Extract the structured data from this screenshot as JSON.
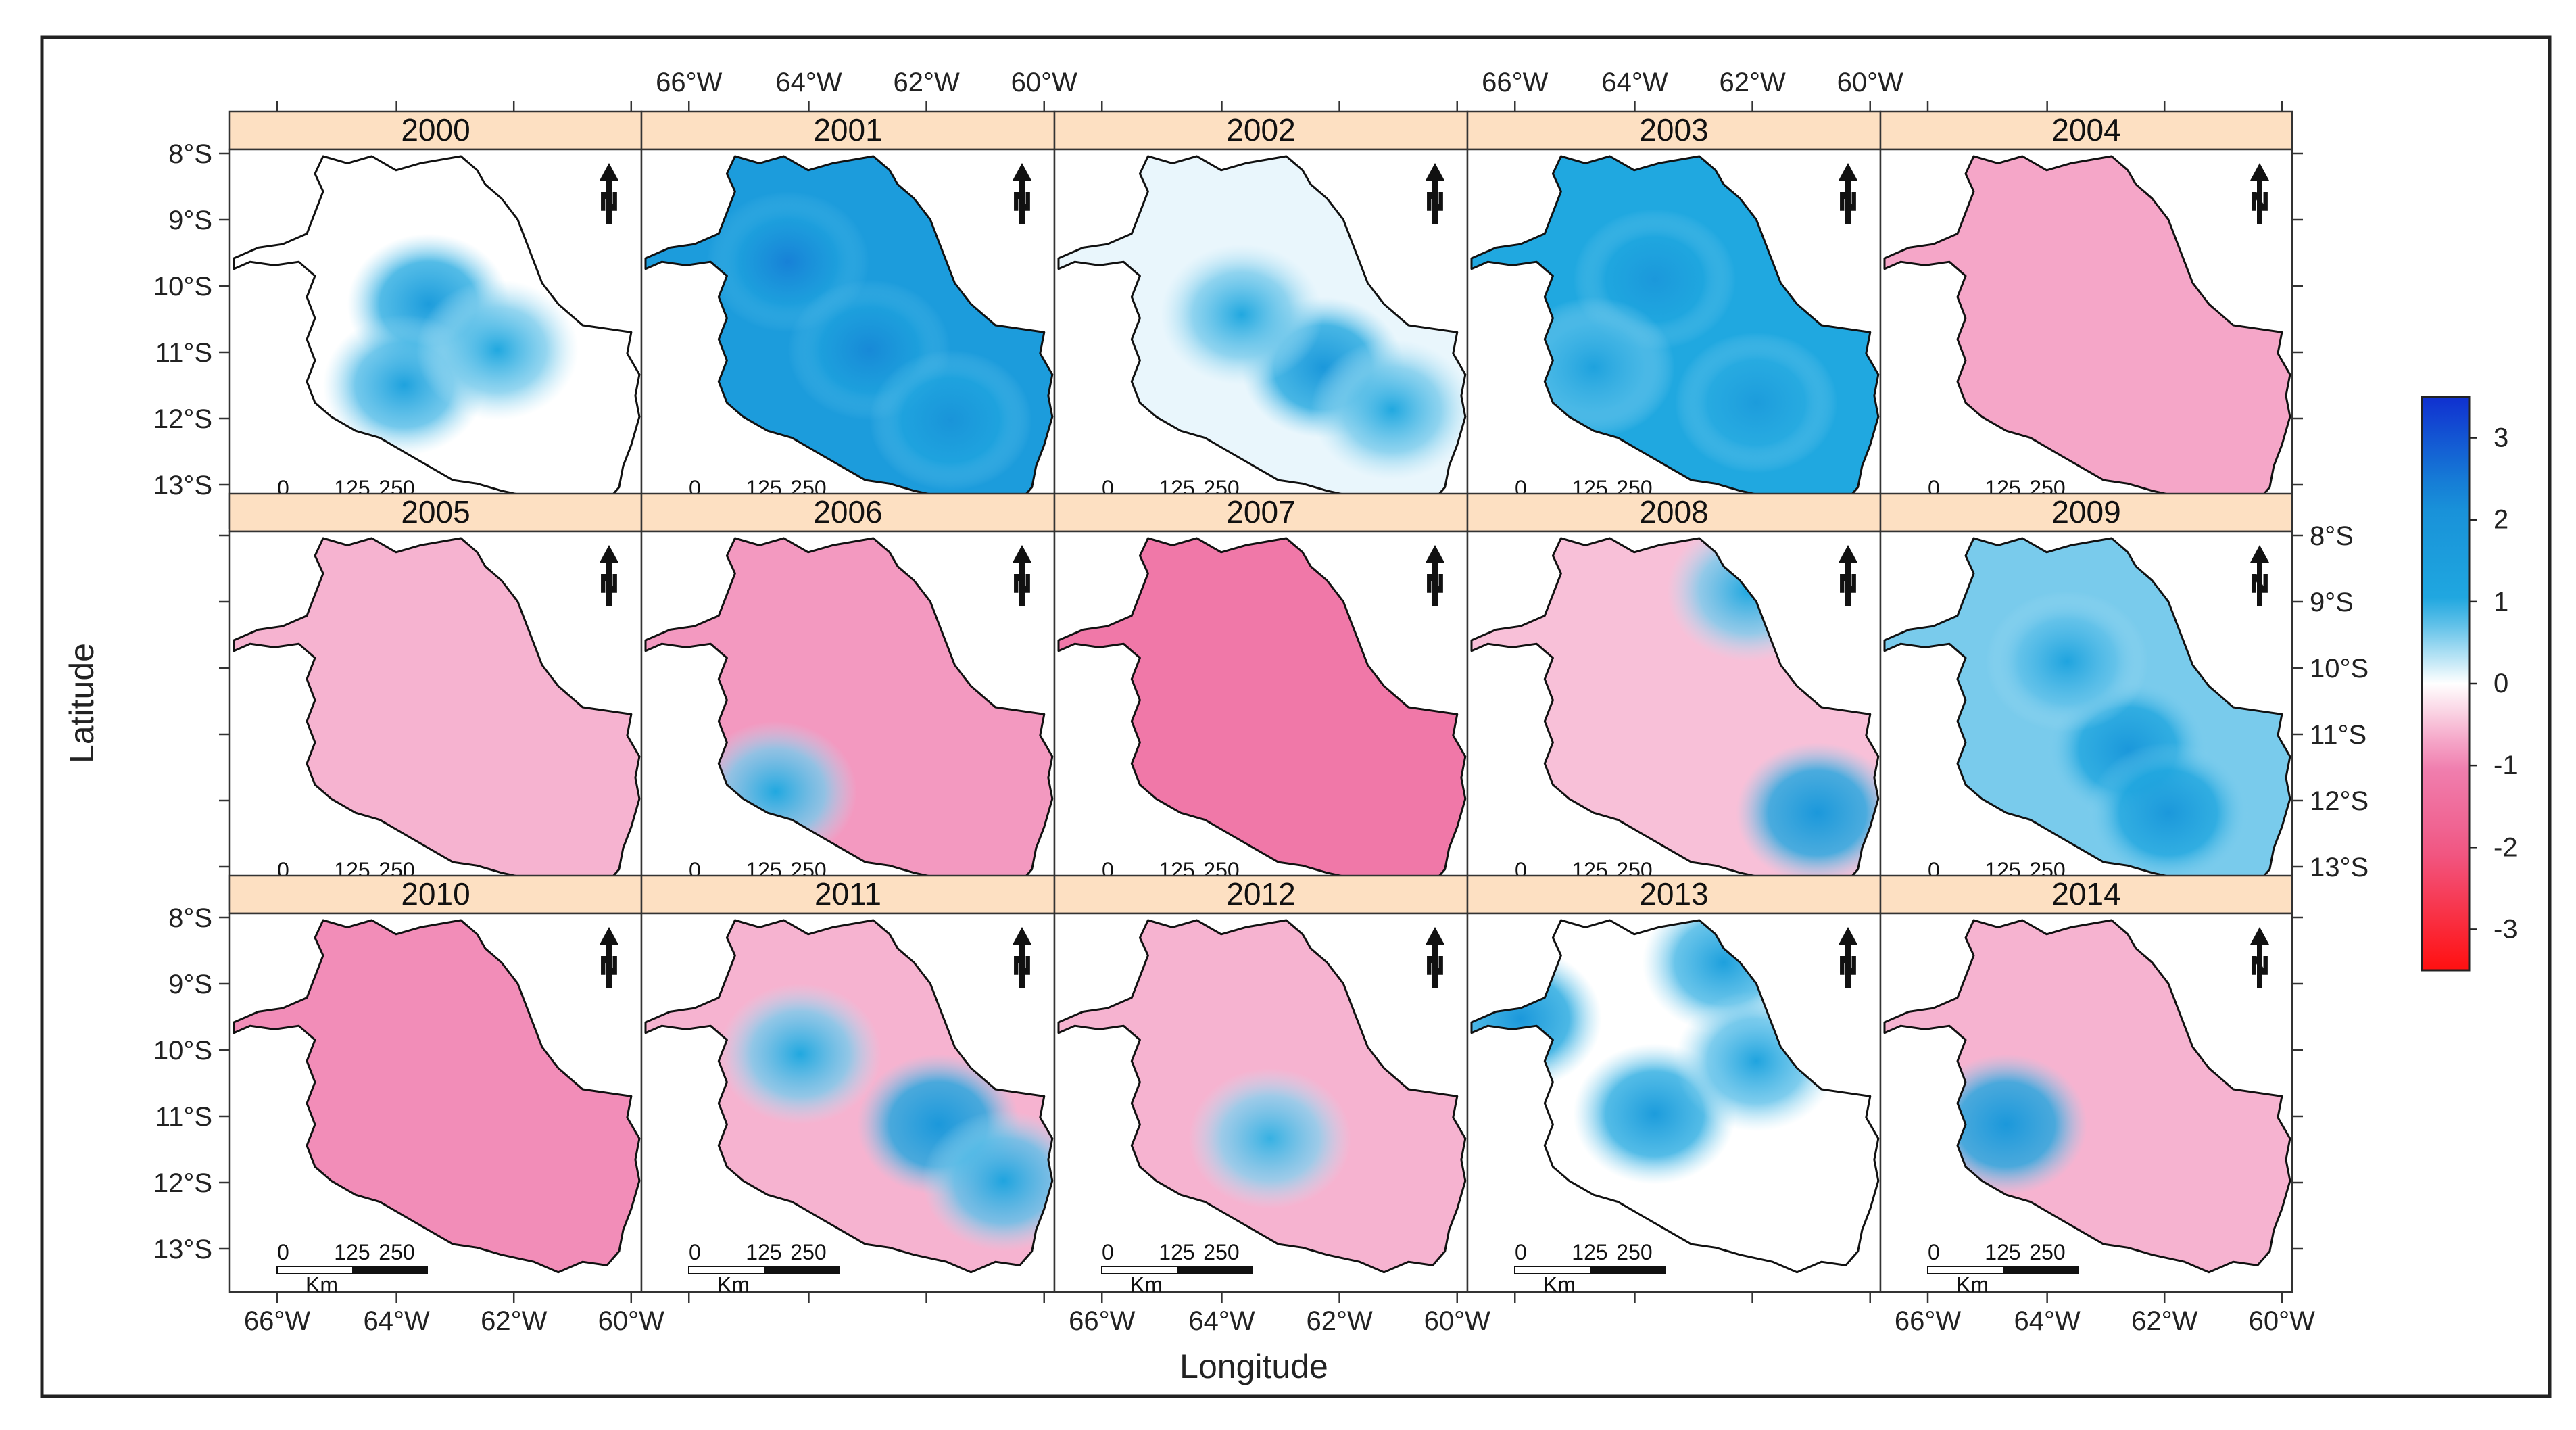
{
  "figure": {
    "type": "map_panel_grid",
    "xlabel": "Longitude",
    "ylabel": "Latitude",
    "x_tick_labels": [
      "66°W",
      "64°W",
      "62°W",
      "60°W"
    ],
    "y_tick_labels": [
      "8°S",
      "9°S",
      "10°S",
      "11°S",
      "12°S",
      "13°S"
    ],
    "scale_bar": {
      "labels": [
        "0",
        "125",
        "250"
      ],
      "unit": "Km"
    },
    "north_arrow": "N",
    "colorbar": {
      "ticks": [
        "3",
        "2",
        "1",
        "0",
        "-1",
        "-2",
        "-3"
      ],
      "range": [
        -3.5,
        3.5
      ],
      "colors": {
        "positive": "#1030d0",
        "mid_positive": "#20a8e0",
        "neutral": "#ffffff",
        "mid_negative": "#f080b0",
        "negative": "#ff1010"
      }
    }
  },
  "panels": [
    {
      "year": "2000",
      "anomaly": 0.0,
      "blue_patches": [
        [
          0.48,
          0.42,
          1.6
        ],
        [
          0.42,
          0.65,
          1.3
        ],
        [
          0.65,
          0.55,
          1.0
        ]
      ]
    },
    {
      "year": "2001",
      "anomaly": 1.6,
      "blue_patches": [
        [
          0.35,
          0.3,
          2.4
        ],
        [
          0.55,
          0.55,
          2.3
        ],
        [
          0.75,
          0.75,
          2.0
        ]
      ]
    },
    {
      "year": "2002",
      "anomaly": 0.1,
      "blue_patches": [
        [
          0.65,
          0.6,
          1.8
        ],
        [
          0.45,
          0.45,
          1.0
        ],
        [
          0.82,
          0.72,
          1.0
        ]
      ]
    },
    {
      "year": "2003",
      "anomaly": 1.0,
      "blue_patches": [
        [
          0.45,
          0.35,
          1.8
        ],
        [
          0.7,
          0.7,
          1.6
        ],
        [
          0.3,
          0.6,
          1.3
        ]
      ]
    },
    {
      "year": "2004",
      "anomaly": -0.7,
      "blue_patches": []
    },
    {
      "year": "2005",
      "anomaly": -0.6,
      "blue_patches": []
    },
    {
      "year": "2006",
      "anomaly": -0.8,
      "blue_patches": [
        [
          0.32,
          0.72,
          1.0
        ]
      ]
    },
    {
      "year": "2007",
      "anomaly": -1.2,
      "blue_patches": []
    },
    {
      "year": "2008",
      "anomaly": -0.5,
      "blue_patches": [
        [
          0.85,
          0.78,
          1.8
        ],
        [
          0.68,
          0.15,
          1.0
        ]
      ]
    },
    {
      "year": "2009",
      "anomaly": 0.6,
      "blue_patches": [
        [
          0.6,
          0.6,
          1.8
        ],
        [
          0.7,
          0.78,
          1.8
        ],
        [
          0.45,
          0.35,
          1.2
        ]
      ]
    },
    {
      "year": "2010",
      "anomaly": -0.9,
      "blue_patches": []
    },
    {
      "year": "2011",
      "anomaly": -0.6,
      "blue_patches": [
        [
          0.72,
          0.58,
          1.8
        ],
        [
          0.38,
          0.38,
          1.0
        ],
        [
          0.88,
          0.74,
          1.2
        ]
      ]
    },
    {
      "year": "2012",
      "anomaly": -0.6,
      "blue_patches": [
        [
          0.52,
          0.62,
          0.9
        ]
      ]
    },
    {
      "year": "2013",
      "anomaly": 0.0,
      "blue_patches": [
        [
          0.45,
          0.55,
          1.6
        ],
        [
          0.62,
          0.12,
          1.4
        ],
        [
          0.12,
          0.28,
          1.8
        ],
        [
          0.7,
          0.4,
          1.2
        ]
      ]
    },
    {
      "year": "2014",
      "anomaly": -0.6,
      "blue_patches": [
        [
          0.3,
          0.58,
          1.8
        ]
      ]
    }
  ]
}
